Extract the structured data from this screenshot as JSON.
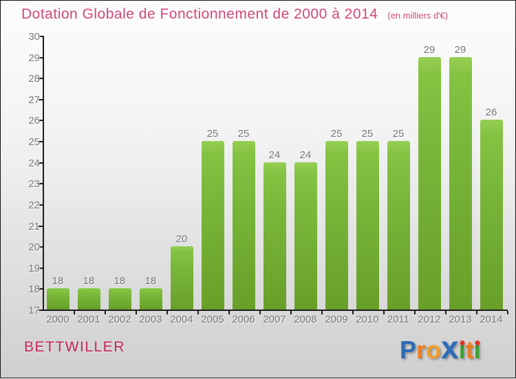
{
  "page": {
    "commune": "BETTWILLER"
  },
  "colors": {
    "title_pink": "#d2477a",
    "commune_crimson": "#c22458",
    "bar_green_top": "#85c342",
    "bar_green_bottom": "#689f28",
    "axis_black": "#1c1c1c",
    "label_gray": "#777777",
    "background_top": "#fdfdfd",
    "background_bottom": "#cfcfcf"
  },
  "logo": {
    "name": "Proxiti",
    "letters": [
      {
        "ch": "P",
        "color": "#2e6cb5",
        "size": "lg"
      },
      {
        "ch": "r",
        "color": "#ed7d21",
        "size": "lg"
      },
      {
        "ch": "o",
        "color": "#f09e2a",
        "size": "lg"
      },
      {
        "ch": "x",
        "color": "#2e6cb5",
        "size": "xbig"
      },
      {
        "ch": "ı",
        "color": "#3ba233",
        "size": "lg",
        "dot": "#dd3526"
      },
      {
        "ch": "t",
        "color": "#ed7d21",
        "size": "lg"
      },
      {
        "ch": "ı",
        "color": "#3ba233",
        "size": "lg",
        "dot": "#dd3526"
      }
    ]
  },
  "chart_data": {
    "type": "bar",
    "title": "Dotation Globale de Fonctionnement de 2000 à 2014",
    "unit_label": "(en milliers d'€)",
    "categories": [
      "2000",
      "2001",
      "2002",
      "2003",
      "2004",
      "2005",
      "2006",
      "2007",
      "2008",
      "2009",
      "2010",
      "2011",
      "2012",
      "2013",
      "2014"
    ],
    "values": [
      18,
      18,
      18,
      18,
      20,
      25,
      25,
      24,
      24,
      25,
      25,
      25,
      29,
      29,
      26
    ],
    "ylim": [
      17,
      30
    ],
    "yticks": [
      17,
      18,
      19,
      20,
      21,
      22,
      23,
      24,
      25,
      26,
      27,
      28,
      29,
      30
    ],
    "xlabel": "",
    "ylabel": "",
    "grid": false,
    "legend": false,
    "bar_value_labels_shown": true
  }
}
